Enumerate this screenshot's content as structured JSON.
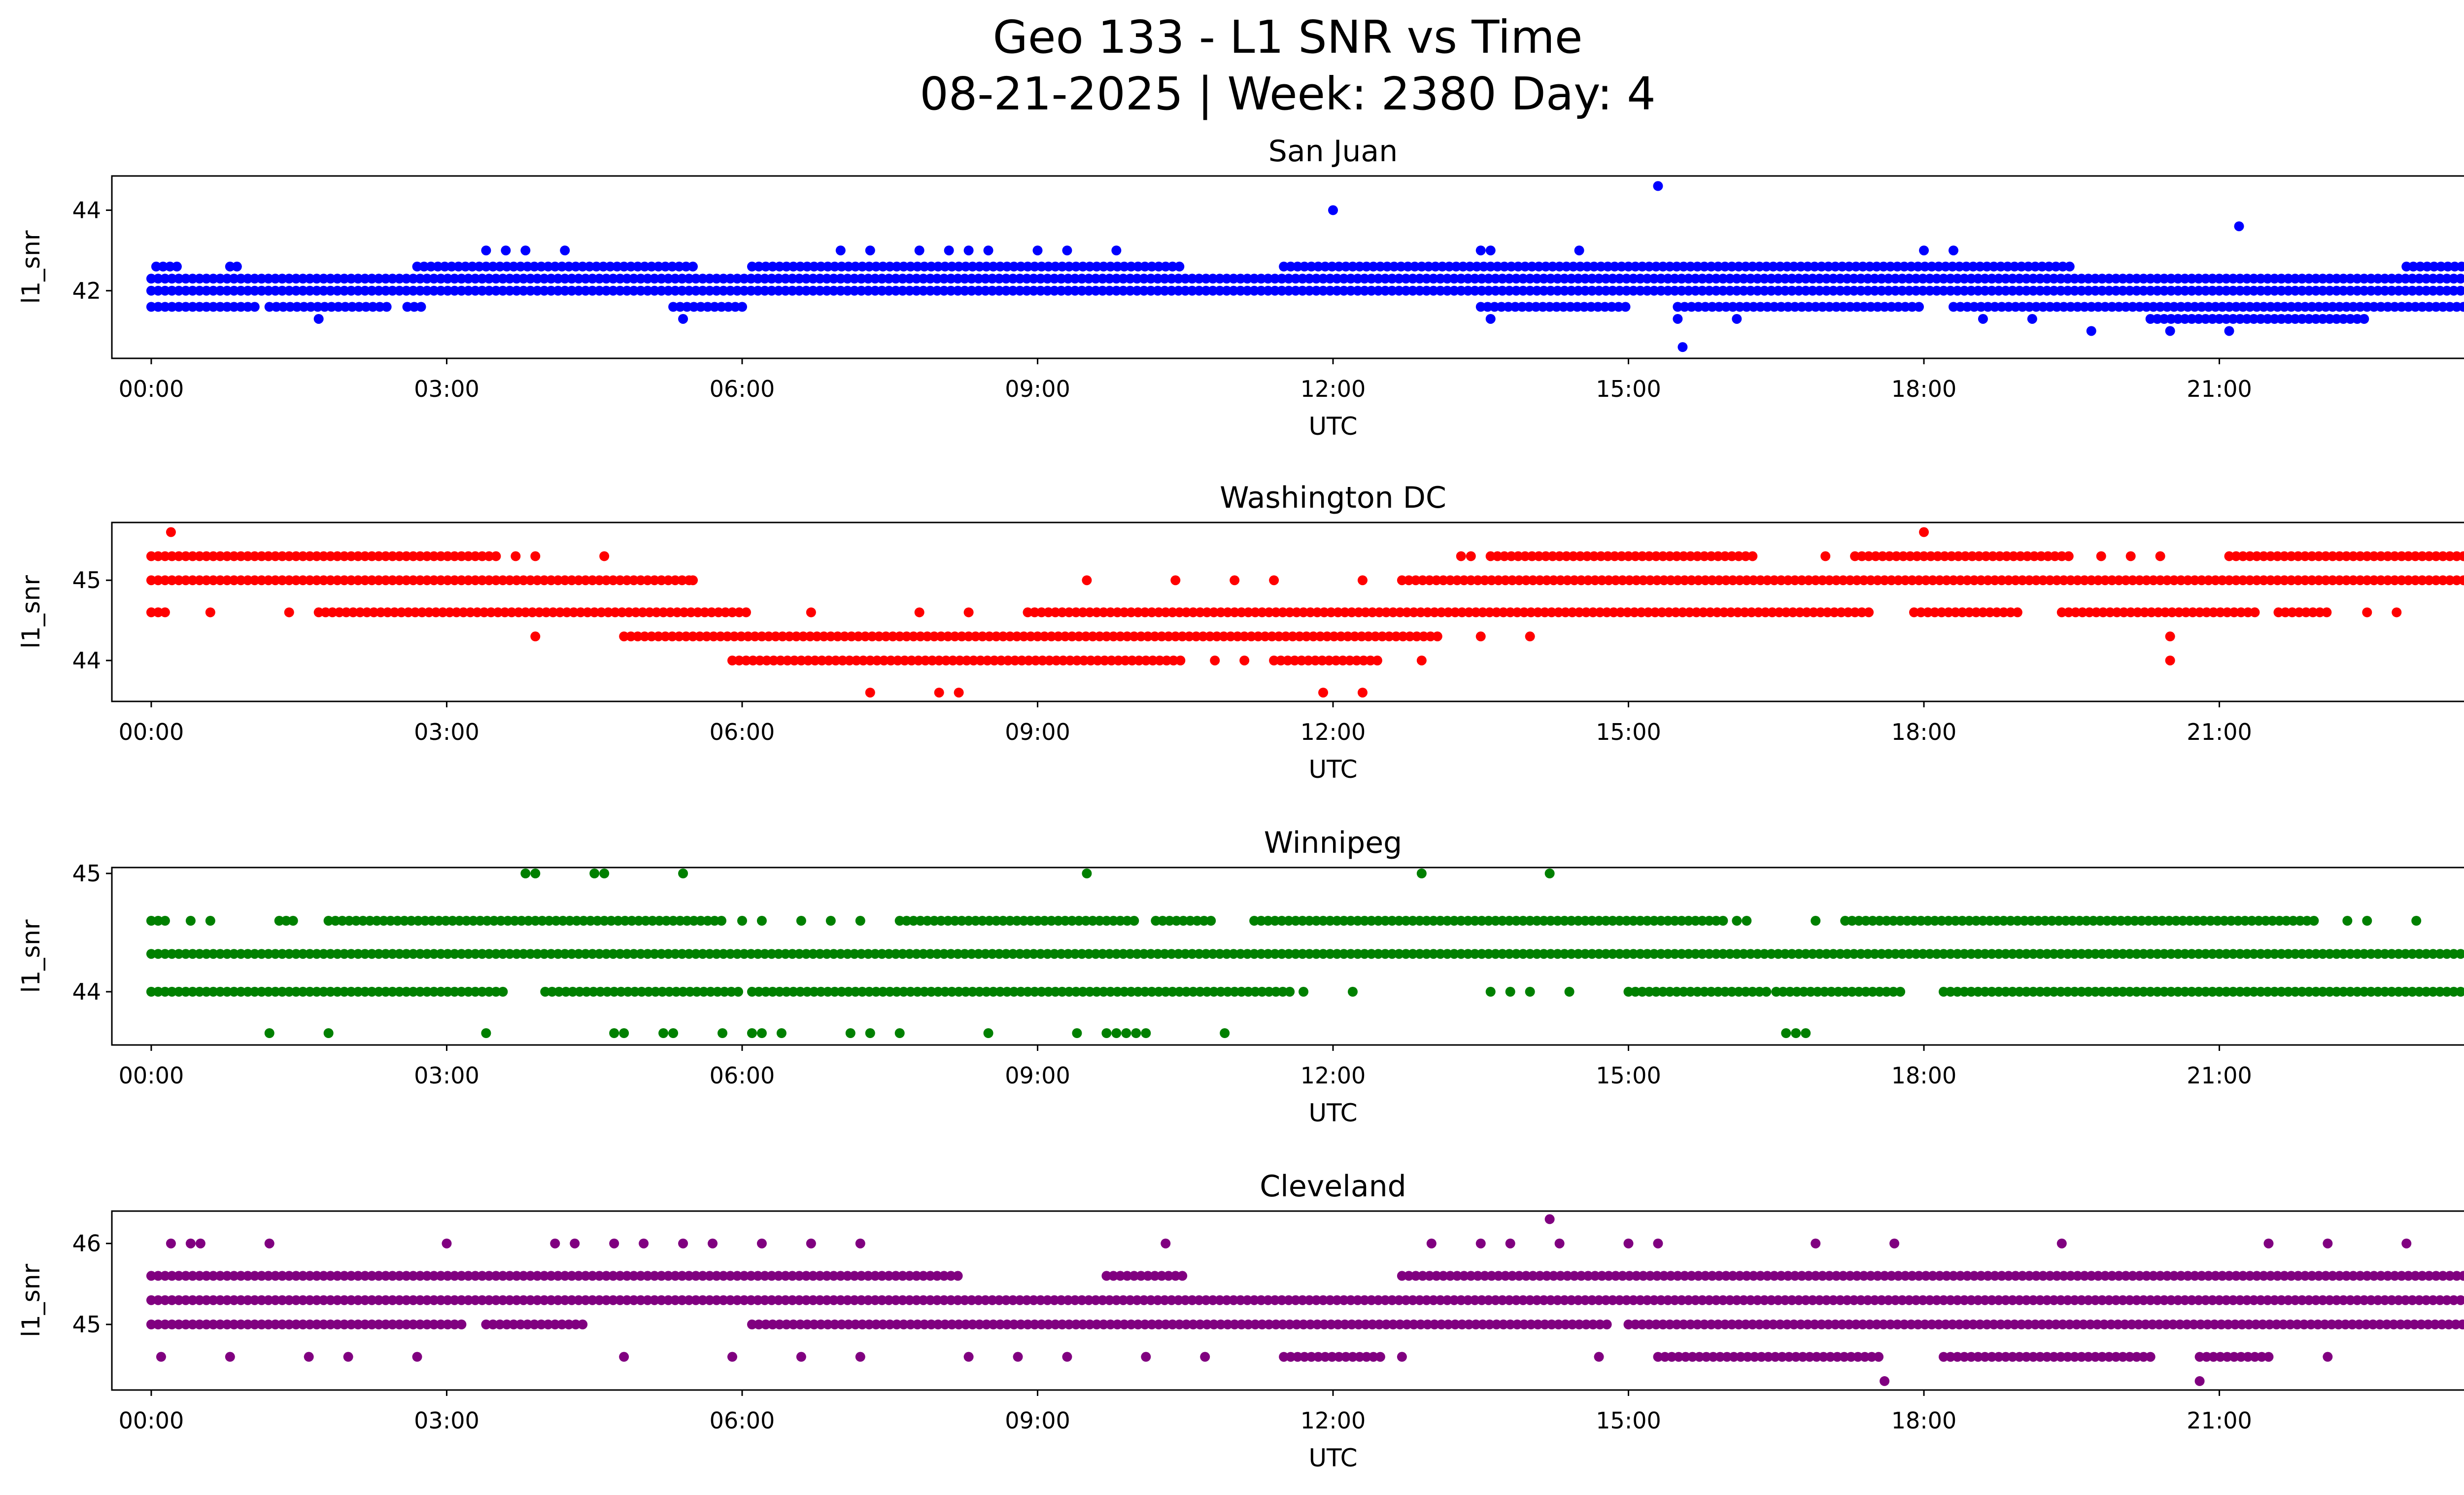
{
  "chart_data": {
    "type": "scatter",
    "title": "Geo 133 - L1 SNR vs Time",
    "subtitle": "08-21-2025 | Week: 2380 Day: 4",
    "xlabel": "UTC",
    "ylabel": "l1_snr",
    "xlim_hours": [
      -0.4,
      24.4
    ],
    "x_ticks": [
      0,
      3,
      6,
      9,
      12,
      15,
      18,
      21,
      24
    ],
    "x_tick_labels": [
      "00:00",
      "03:00",
      "06:00",
      "09:00",
      "12:00",
      "15:00",
      "18:00",
      "21:00",
      "00:00"
    ],
    "grid": false,
    "panels": [
      {
        "name": "San Juan",
        "color": "#0000ff",
        "ylim": [
          40.32,
          44.85
        ],
        "y_ticks": [
          42,
          44
        ],
        "y_tick_labels": [
          "42",
          "44"
        ],
        "dense_levels": [
          {
            "y": 42.0,
            "ranges": [
              [
                0,
                24
              ]
            ]
          },
          {
            "y": 42.3,
            "ranges": [
              [
                0,
                24
              ]
            ]
          },
          {
            "y": 42.6,
            "ranges": [
              [
                0.05,
                0.3
              ],
              [
                0.8,
                0.9
              ],
              [
                2.7,
                5.5
              ],
              [
                6.1,
                10.5
              ],
              [
                11.5,
                19.5
              ],
              [
                22.9,
                24
              ]
            ]
          },
          {
            "y": 41.6,
            "ranges": [
              [
                0,
                1.1
              ],
              [
                1.2,
                2.4
              ],
              [
                2.6,
                2.8
              ],
              [
                5.3,
                6.0
              ],
              [
                13.5,
                15.0
              ],
              [
                15.5,
                18.0
              ],
              [
                18.3,
                24
              ]
            ]
          },
          {
            "y": 41.3,
            "ranges": [
              [
                20.3,
                22.5
              ]
            ]
          }
        ],
        "points": [
          [
            3.4,
            43.0
          ],
          [
            3.6,
            43.0
          ],
          [
            3.8,
            43.0
          ],
          [
            4.2,
            43.0
          ],
          [
            7.0,
            43.0
          ],
          [
            7.3,
            43.0
          ],
          [
            7.8,
            43.0
          ],
          [
            8.1,
            43.0
          ],
          [
            8.3,
            43.0
          ],
          [
            8.5,
            43.0
          ],
          [
            9.0,
            43.0
          ],
          [
            9.3,
            43.0
          ],
          [
            9.8,
            43.0
          ],
          [
            13.5,
            43.0
          ],
          [
            13.6,
            43.0
          ],
          [
            14.5,
            43.0
          ],
          [
            18.0,
            43.0
          ],
          [
            18.3,
            43.0
          ],
          [
            23.9,
            43.0
          ],
          [
            12.0,
            44.0
          ],
          [
            15.3,
            44.6
          ],
          [
            21.2,
            43.6
          ],
          [
            1.7,
            41.3
          ],
          [
            5.4,
            41.3
          ],
          [
            13.6,
            41.3
          ],
          [
            15.5,
            41.3
          ],
          [
            16.1,
            41.3
          ],
          [
            18.6,
            41.3
          ],
          [
            19.1,
            41.3
          ],
          [
            19.7,
            41.0
          ],
          [
            20.5,
            41.0
          ],
          [
            21.1,
            41.0
          ],
          [
            15.55,
            40.6
          ]
        ]
      },
      {
        "name": "Washington DC",
        "color": "#ff0000",
        "ylim": [
          43.49,
          45.72
        ],
        "y_ticks": [
          44,
          45
        ],
        "y_tick_labels": [
          "44",
          "45"
        ],
        "dense_levels": [
          {
            "y": 45.3,
            "ranges": [
              [
                0,
                3.5
              ],
              [
                13.6,
                16.3
              ],
              [
                17.3,
                19.5
              ],
              [
                21.1,
                24
              ]
            ]
          },
          {
            "y": 45.0,
            "ranges": [
              [
                0,
                5.5
              ],
              [
                12.7,
                24
              ]
            ]
          },
          {
            "y": 44.6,
            "ranges": [
              [
                0,
                0.2
              ],
              [
                1.7,
                6.1
              ],
              [
                8.9,
                17.5
              ],
              [
                17.9,
                19.0
              ],
              [
                19.4,
                21.4
              ],
              [
                21.6,
                22.1
              ]
            ]
          },
          {
            "y": 44.3,
            "ranges": [
              [
                4.8,
                13.1
              ]
            ]
          },
          {
            "y": 44.0,
            "ranges": [
              [
                5.9,
                10.5
              ],
              [
                11.4,
                12.5
              ]
            ]
          }
        ],
        "points": [
          [
            0.2,
            45.6
          ],
          [
            18.0,
            45.6
          ],
          [
            23.6,
            45.6
          ],
          [
            3.7,
            45.3
          ],
          [
            3.9,
            45.3
          ],
          [
            4.6,
            45.3
          ],
          [
            13.3,
            45.3
          ],
          [
            13.4,
            45.3
          ],
          [
            17.0,
            45.3
          ],
          [
            19.8,
            45.3
          ],
          [
            20.1,
            45.3
          ],
          [
            20.4,
            45.3
          ],
          [
            5.5,
            45.0
          ],
          [
            9.5,
            45.0
          ],
          [
            10.4,
            45.0
          ],
          [
            11.0,
            45.0
          ],
          [
            11.4,
            45.0
          ],
          [
            12.3,
            45.0
          ],
          [
            0.6,
            44.6
          ],
          [
            1.4,
            44.6
          ],
          [
            6.7,
            44.6
          ],
          [
            7.8,
            44.6
          ],
          [
            8.3,
            44.6
          ],
          [
            22.5,
            44.6
          ],
          [
            22.8,
            44.6
          ],
          [
            3.9,
            44.3
          ],
          [
            13.5,
            44.3
          ],
          [
            14.0,
            44.3
          ],
          [
            20.5,
            44.3
          ],
          [
            20.5,
            44.0
          ],
          [
            10.8,
            44.0
          ],
          [
            11.1,
            44.0
          ],
          [
            12.9,
            44.0
          ],
          [
            7.3,
            43.6
          ],
          [
            8.0,
            43.6
          ],
          [
            8.2,
            43.6
          ],
          [
            11.9,
            43.6
          ],
          [
            12.3,
            43.6
          ]
        ]
      },
      {
        "name": "Winnipeg",
        "color": "#008000",
        "ylim": [
          43.55,
          45.05
        ],
        "y_ticks": [
          44,
          45
        ],
        "y_tick_labels": [
          "44",
          "45"
        ],
        "dense_levels": [
          {
            "y": 44.32,
            "ranges": [
              [
                0,
                24
              ]
            ]
          },
          {
            "y": 44.0,
            "ranges": [
              [
                0,
                3.6
              ],
              [
                4.0,
                6.0
              ],
              [
                6.1,
                11.6
              ],
              [
                15.0,
                16.4
              ],
              [
                16.5,
                17.8
              ],
              [
                18.2,
                24
              ]
            ]
          },
          {
            "y": 44.6,
            "ranges": [
              [
                0,
                0.2
              ],
              [
                1.3,
                1.5
              ],
              [
                1.8,
                5.8
              ],
              [
                7.6,
                10.0
              ],
              [
                10.2,
                10.8
              ],
              [
                11.2,
                16.0
              ],
              [
                17.2,
                22.0
              ]
            ]
          }
        ],
        "points": [
          [
            3.8,
            45.0
          ],
          [
            3.9,
            45.0
          ],
          [
            4.5,
            45.0
          ],
          [
            4.6,
            45.0
          ],
          [
            5.4,
            45.0
          ],
          [
            9.5,
            45.0
          ],
          [
            12.9,
            45.0
          ],
          [
            14.2,
            45.0
          ],
          [
            0.4,
            44.6
          ],
          [
            0.6,
            44.6
          ],
          [
            6.0,
            44.6
          ],
          [
            6.2,
            44.6
          ],
          [
            6.6,
            44.6
          ],
          [
            6.9,
            44.6
          ],
          [
            7.2,
            44.6
          ],
          [
            16.1,
            44.6
          ],
          [
            16.2,
            44.6
          ],
          [
            16.9,
            44.6
          ],
          [
            22.3,
            44.6
          ],
          [
            22.5,
            44.6
          ],
          [
            23.0,
            44.6
          ],
          [
            23.9,
            44.6
          ],
          [
            11.7,
            44.0
          ],
          [
            12.2,
            44.0
          ],
          [
            13.6,
            44.0
          ],
          [
            13.8,
            44.0
          ],
          [
            14.0,
            44.0
          ],
          [
            14.4,
            44.0
          ],
          [
            1.2,
            43.65
          ],
          [
            1.8,
            43.65
          ],
          [
            3.4,
            43.65
          ],
          [
            4.7,
            43.65
          ],
          [
            4.8,
            43.65
          ],
          [
            5.2,
            43.65
          ],
          [
            5.3,
            43.65
          ],
          [
            5.8,
            43.65
          ],
          [
            6.1,
            43.65
          ],
          [
            6.2,
            43.65
          ],
          [
            6.4,
            43.65
          ],
          [
            7.1,
            43.65
          ],
          [
            7.3,
            43.65
          ],
          [
            7.6,
            43.65
          ],
          [
            8.5,
            43.65
          ],
          [
            9.4,
            43.65
          ],
          [
            9.7,
            43.65
          ],
          [
            9.8,
            43.65
          ],
          [
            9.9,
            43.65
          ],
          [
            10.0,
            43.65
          ],
          [
            10.1,
            43.65
          ],
          [
            10.9,
            43.65
          ],
          [
            16.6,
            43.65
          ],
          [
            16.7,
            43.65
          ],
          [
            16.8,
            43.65
          ]
        ]
      },
      {
        "name": "Cleveland",
        "color": "#800080",
        "ylim": [
          44.19,
          46.4
        ],
        "y_ticks": [
          45,
          46
        ],
        "y_tick_labels": [
          "45",
          "46"
        ],
        "dense_levels": [
          {
            "y": 45.3,
            "ranges": [
              [
                0,
                24
              ]
            ]
          },
          {
            "y": 45.6,
            "ranges": [
              [
                0,
                8.2
              ],
              [
                9.7,
                10.5
              ],
              [
                12.7,
                24
              ]
            ]
          },
          {
            "y": 45.0,
            "ranges": [
              [
                0,
                3.2
              ],
              [
                3.4,
                4.4
              ],
              [
                6.1,
                14.8
              ],
              [
                15.0,
                24
              ]
            ]
          },
          {
            "y": 44.6,
            "ranges": [
              [
                11.5,
                12.5
              ],
              [
                15.3,
                17.6
              ],
              [
                18.2,
                20.3
              ],
              [
                20.8,
                21.5
              ]
            ]
          }
        ],
        "points": [
          [
            14.2,
            46.3
          ],
          [
            0.2,
            46.0
          ],
          [
            0.4,
            46.0
          ],
          [
            0.5,
            46.0
          ],
          [
            1.2,
            46.0
          ],
          [
            3.0,
            46.0
          ],
          [
            4.1,
            46.0
          ],
          [
            4.3,
            46.0
          ],
          [
            4.7,
            46.0
          ],
          [
            5.0,
            46.0
          ],
          [
            5.4,
            46.0
          ],
          [
            5.7,
            46.0
          ],
          [
            6.2,
            46.0
          ],
          [
            6.7,
            46.0
          ],
          [
            7.2,
            46.0
          ],
          [
            10.3,
            46.0
          ],
          [
            13.0,
            46.0
          ],
          [
            13.5,
            46.0
          ],
          [
            13.8,
            46.0
          ],
          [
            14.3,
            46.0
          ],
          [
            15.0,
            46.0
          ],
          [
            15.3,
            46.0
          ],
          [
            16.9,
            46.0
          ],
          [
            17.7,
            46.0
          ],
          [
            19.4,
            46.0
          ],
          [
            21.5,
            46.0
          ],
          [
            22.1,
            46.0
          ],
          [
            22.9,
            46.0
          ],
          [
            23.6,
            46.0
          ],
          [
            0.1,
            44.6
          ],
          [
            0.8,
            44.6
          ],
          [
            1.6,
            44.6
          ],
          [
            2.0,
            44.6
          ],
          [
            2.7,
            44.6
          ],
          [
            4.8,
            44.6
          ],
          [
            5.9,
            44.6
          ],
          [
            6.6,
            44.6
          ],
          [
            7.2,
            44.6
          ],
          [
            8.3,
            44.6
          ],
          [
            8.8,
            44.6
          ],
          [
            9.3,
            44.6
          ],
          [
            10.1,
            44.6
          ],
          [
            10.7,
            44.6
          ],
          [
            12.7,
            44.6
          ],
          [
            14.7,
            44.6
          ],
          [
            22.1,
            44.6
          ],
          [
            23.9,
            44.6
          ],
          [
            17.6,
            44.3
          ],
          [
            20.8,
            44.3
          ]
        ]
      }
    ]
  }
}
